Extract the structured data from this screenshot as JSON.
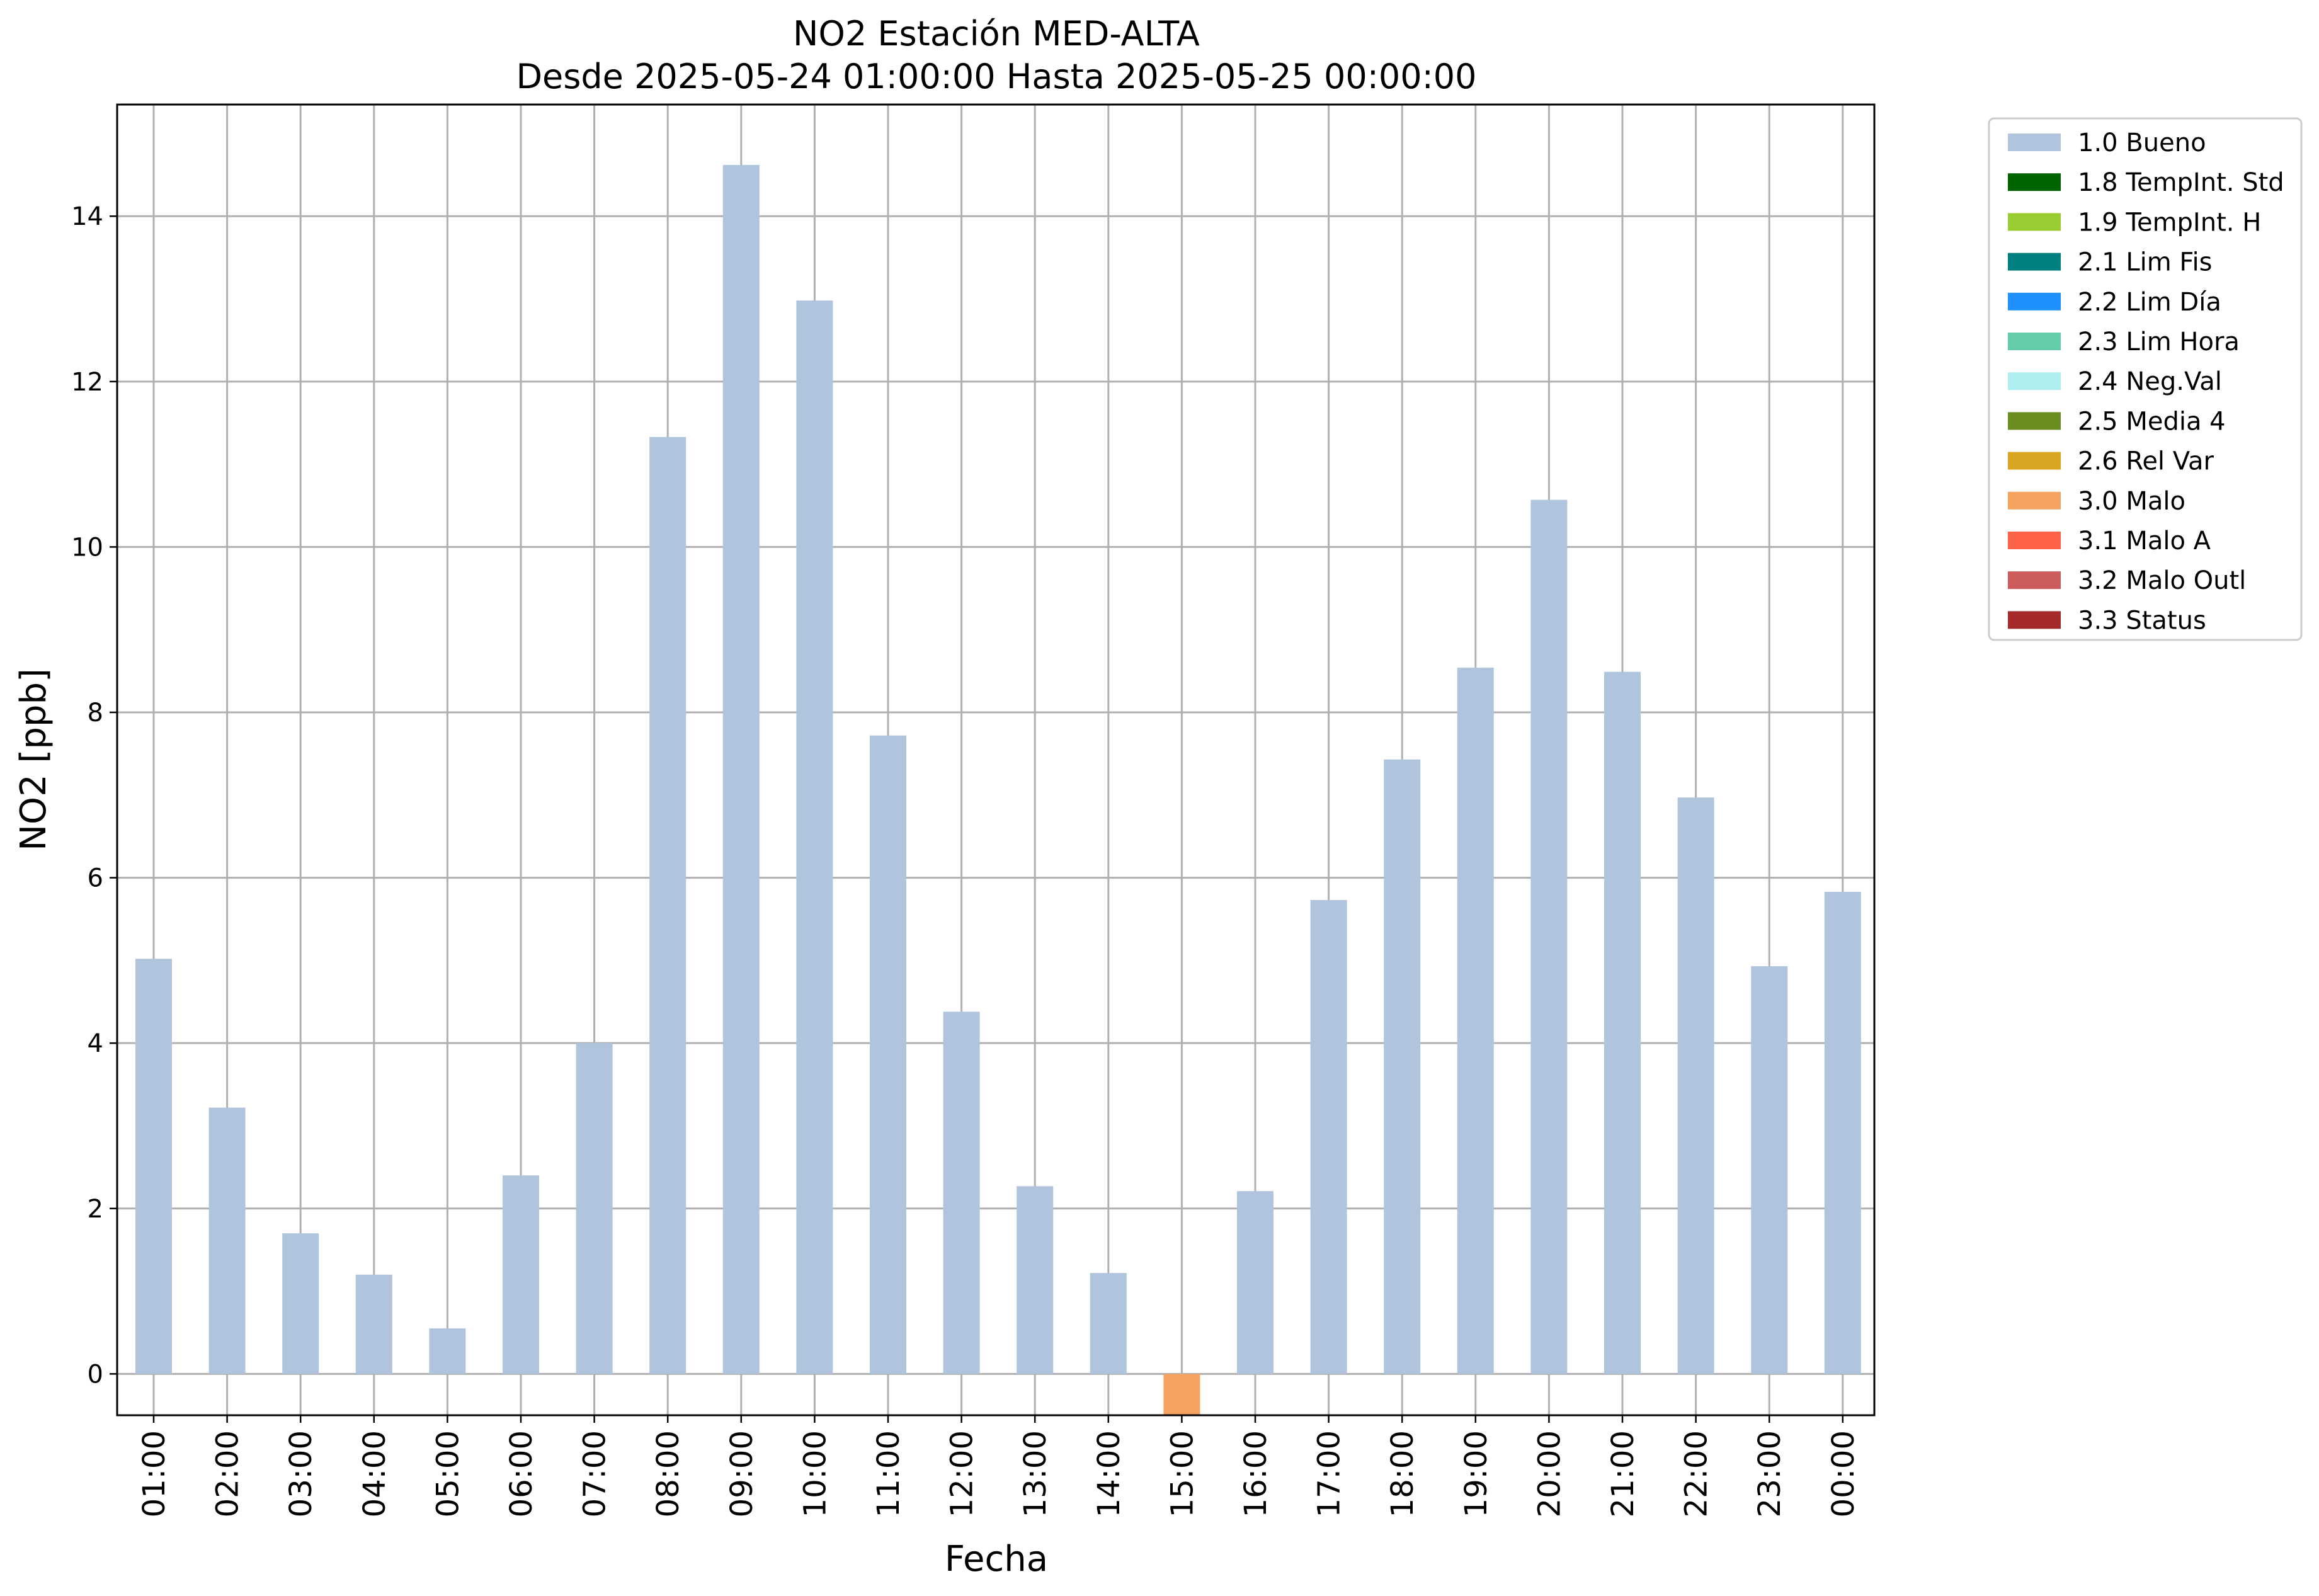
{
  "chart_data": {
    "type": "bar",
    "title": "NO2 Estación MED-ALTA",
    "subtitle": "Desde 2025-05-24 01:00:00 Hasta 2025-05-25 00:00:00",
    "xlabel": "Fecha",
    "ylabel": "NO2 [ppb]",
    "ylim": [
      -0.5,
      15.35
    ],
    "yticks": [
      0,
      2,
      4,
      6,
      8,
      10,
      12,
      14
    ],
    "grid": true,
    "legend_position": "outside-top-right",
    "categories": [
      "01:00",
      "02:00",
      "03:00",
      "04:00",
      "05:00",
      "06:00",
      "07:00",
      "08:00",
      "09:00",
      "10:00",
      "11:00",
      "12:00",
      "13:00",
      "14:00",
      "15:00",
      "16:00",
      "17:00",
      "18:00",
      "19:00",
      "20:00",
      "21:00",
      "22:00",
      "23:00",
      "00:00"
    ],
    "values": [
      5.02,
      3.22,
      1.7,
      1.2,
      0.55,
      2.4,
      4.0,
      11.33,
      14.62,
      12.98,
      7.72,
      4.38,
      2.27,
      1.22,
      -0.5,
      2.21,
      5.73,
      7.43,
      8.54,
      10.57,
      8.49,
      6.97,
      4.93,
      5.83
    ],
    "flags": [
      "1.0 Bueno",
      "1.0 Bueno",
      "1.0 Bueno",
      "1.0 Bueno",
      "1.0 Bueno",
      "1.0 Bueno",
      "1.0 Bueno",
      "1.0 Bueno",
      "1.0 Bueno",
      "1.0 Bueno",
      "1.0 Bueno",
      "1.0 Bueno",
      "1.0 Bueno",
      "1.0 Bueno",
      "3.0 Malo",
      "1.0 Bueno",
      "1.0 Bueno",
      "1.0 Bueno",
      "1.0 Bueno",
      "1.0 Bueno",
      "1.0 Bueno",
      "1.0 Bueno",
      "1.0 Bueno",
      "1.0 Bueno"
    ],
    "legend": [
      {
        "label": "1.0 Bueno",
        "color": "#b0c4de"
      },
      {
        "label": "1.8 TempInt. Std",
        "color": "#006400"
      },
      {
        "label": "1.9 TempInt. H",
        "color": "#9acd32"
      },
      {
        "label": "2.1 Lim Fis",
        "color": "#008080"
      },
      {
        "label": "2.2 Lim Día",
        "color": "#1e90ff"
      },
      {
        "label": "2.3 Lim Hora",
        "color": "#66cdaa"
      },
      {
        "label": "2.4 Neg.Val",
        "color": "#afeeee"
      },
      {
        "label": "2.5 Media 4",
        "color": "#6b8e23"
      },
      {
        "label": "2.6 Rel Var",
        "color": "#daa520"
      },
      {
        "label": "3.0 Malo",
        "color": "#f4a460"
      },
      {
        "label": "3.1 Malo A",
        "color": "#ff6347"
      },
      {
        "label": "3.2 Malo Outl",
        "color": "#cd5c5c"
      },
      {
        "label": "3.3 Status",
        "color": "#a52a2a"
      }
    ]
  }
}
